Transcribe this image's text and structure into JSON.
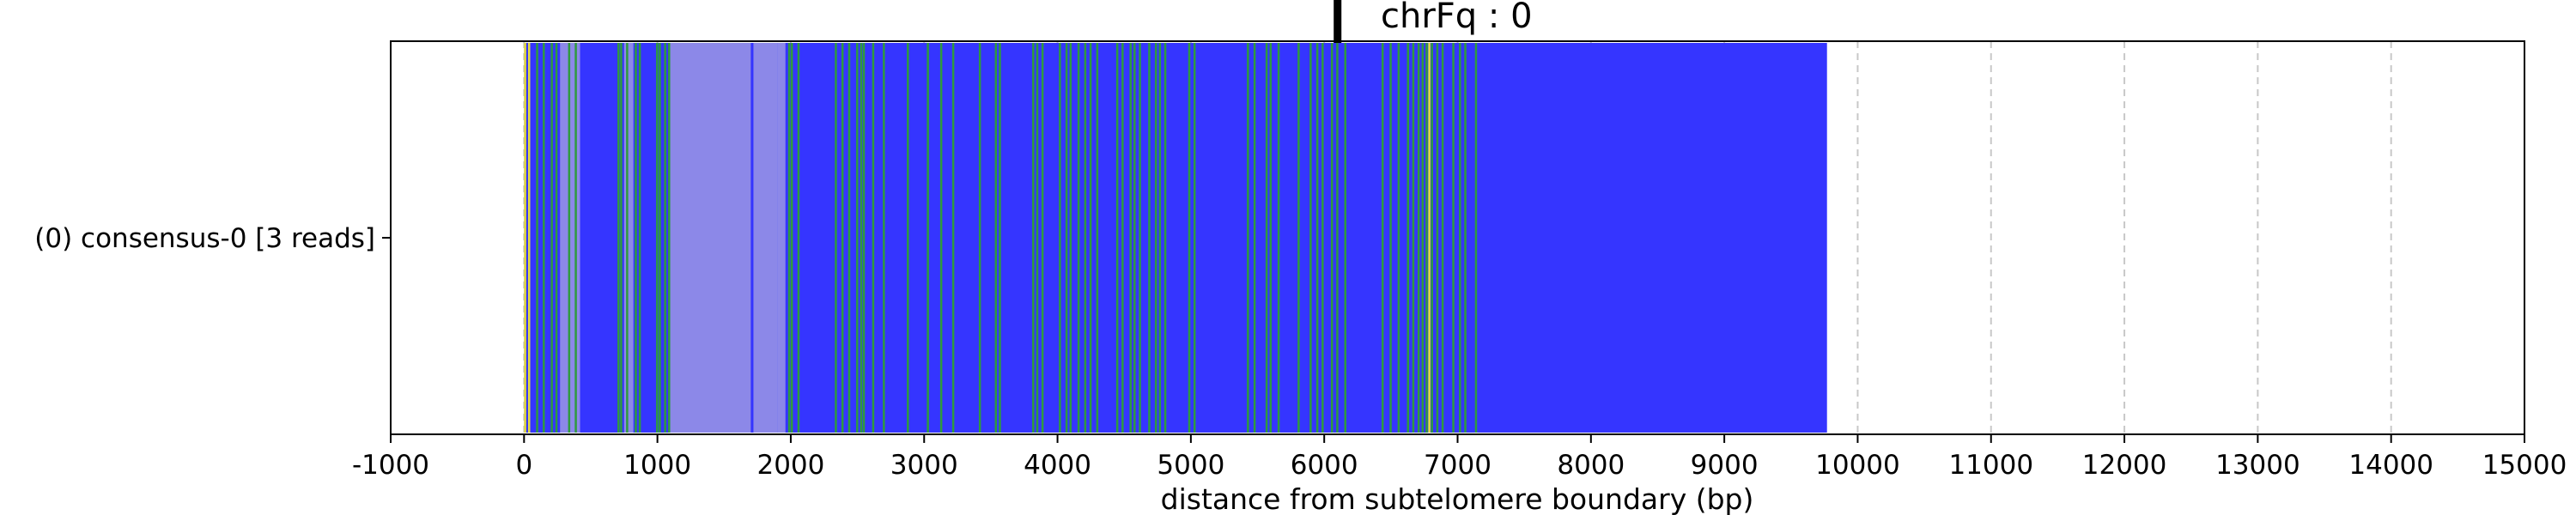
{
  "chart_data": {
    "type": "bar",
    "title": "chrFq : 0",
    "xlabel": "distance from subtelomere boundary (bp)",
    "ylabel": "",
    "xlim": [
      -1000,
      15000
    ],
    "xticks": [
      -1000,
      0,
      1000,
      2000,
      3000,
      4000,
      5000,
      6000,
      7000,
      8000,
      9000,
      10000,
      11000,
      12000,
      13000,
      14000,
      15000
    ],
    "xtick_labels": [
      "-1000",
      "0",
      "1000",
      "2000",
      "3000",
      "4000",
      "5000",
      "6000",
      "7000",
      "8000",
      "9000",
      "10000",
      "11000",
      "12000",
      "13000",
      "14000",
      "15000"
    ],
    "grid": "vertical dashed",
    "marker_position": 6100,
    "rows": [
      {
        "label": "(0) consensus-0 [3 reads]",
        "start": 0,
        "end": 9770,
        "base_color": "#3535ff",
        "light_regions": [
          [
            270,
            420
          ],
          [
            750,
            820
          ],
          [
            1080,
            1700
          ],
          [
            1720,
            1900
          ],
          [
            1900,
            1960
          ]
        ],
        "light_color": "#8c88e8",
        "green_positions": [
          90,
          140,
          200,
          235,
          330,
          380,
          700,
          720,
          765,
          830,
          860,
          990,
          1010,
          1050,
          1080,
          1980,
          2000,
          2050,
          2330,
          2380,
          2430,
          2490,
          2520,
          2540,
          2610,
          2690,
          2870,
          3020,
          3120,
          3210,
          3410,
          3530,
          3560,
          3810,
          3840,
          3880,
          4010,
          4060,
          4090,
          4150,
          4200,
          4240,
          4290,
          4440,
          4480,
          4540,
          4570,
          4610,
          4680,
          4730,
          4760,
          4800,
          4980,
          5020,
          5420,
          5470,
          5560,
          5590,
          5650,
          5800,
          5890,
          5940,
          5980,
          6050,
          6090,
          6150,
          6430,
          6490,
          6550,
          6620,
          6660,
          6700,
          6730,
          6760,
          6800,
          6840,
          6880,
          6960,
          7010,
          7050,
          7130
        ],
        "green_color": "#2f9a3e",
        "yellow_positions": [
          0,
          30,
          6780
        ],
        "yellow_color": "#e8e03a"
      }
    ]
  }
}
